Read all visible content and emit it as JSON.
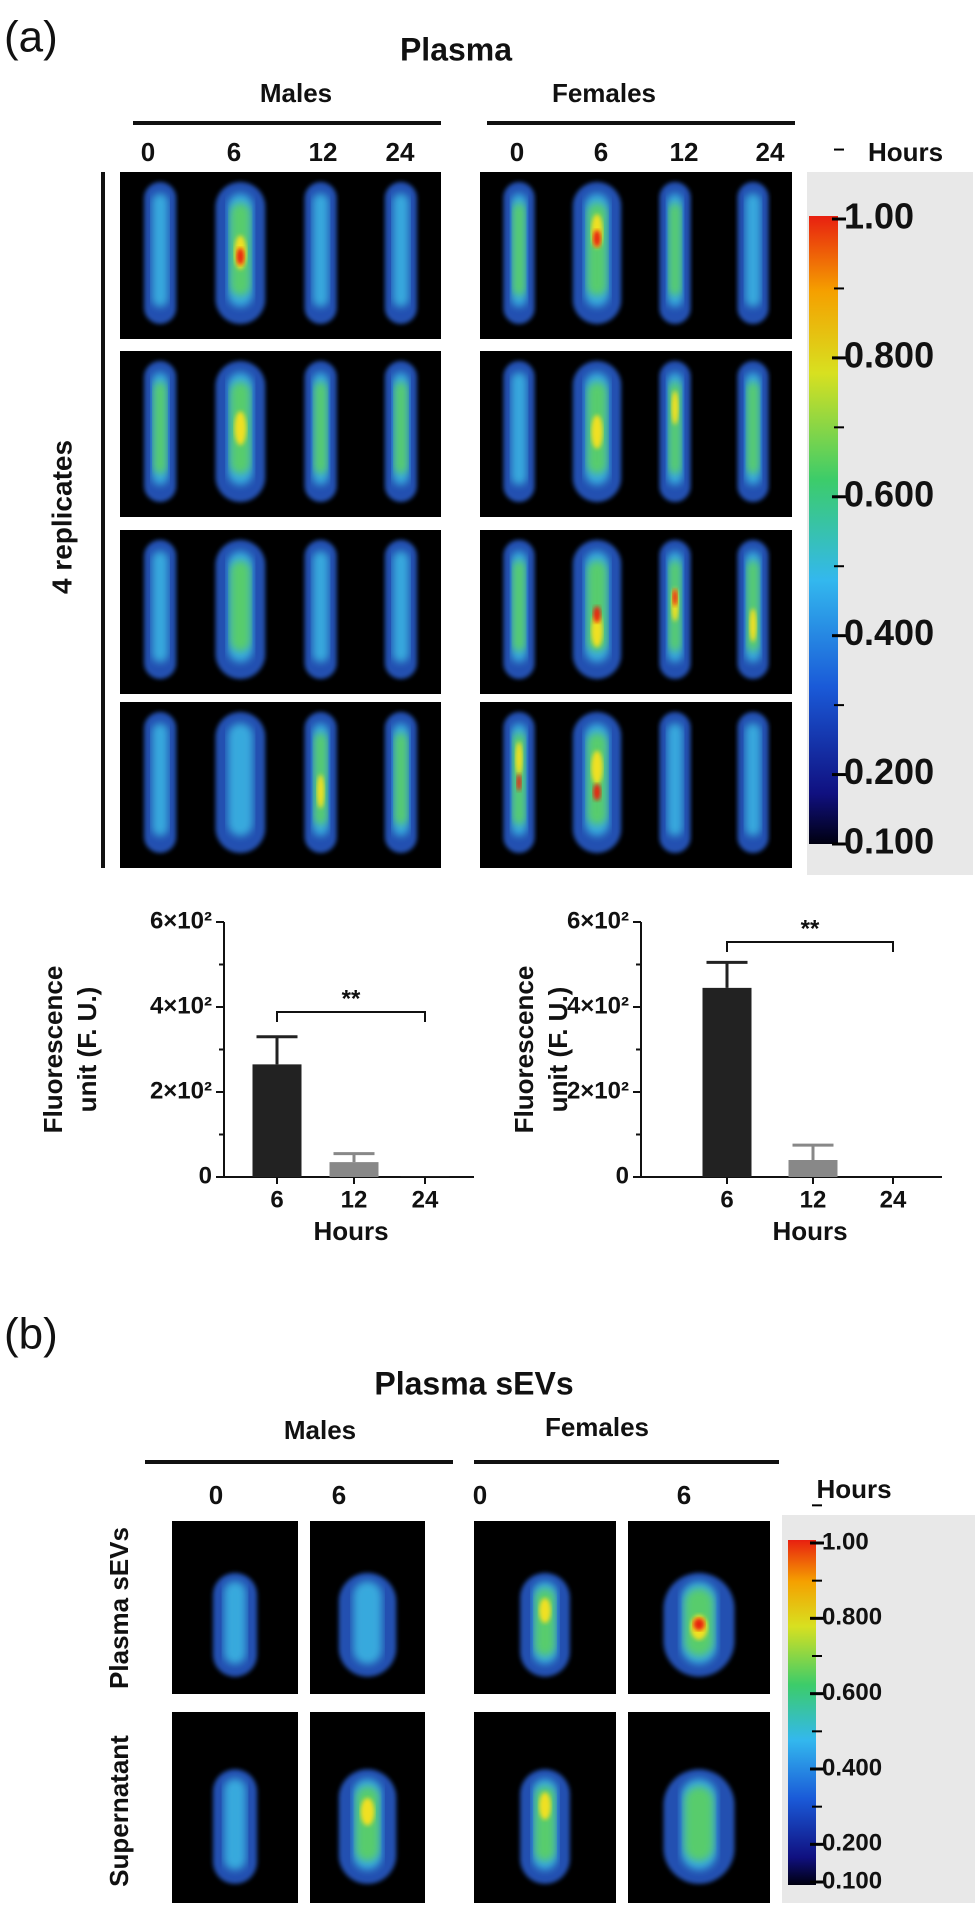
{
  "panel_a": {
    "label": "(a)",
    "title": "Plasma",
    "males": "Males",
    "females": "Females",
    "male_hours": [
      "0",
      "6",
      "12",
      "24"
    ],
    "female_hours": [
      "0",
      "6",
      "12",
      "24"
    ],
    "hours": "Hours",
    "replicates": "4 replicates",
    "colorbar": {
      "ticks": [
        {
          "value": 1.0,
          "label": "1.00"
        },
        {
          "value": 0.8,
          "label": "0.800"
        },
        {
          "value": 0.6,
          "label": "0.600"
        },
        {
          "value": 0.4,
          "label": "0.400"
        },
        {
          "value": 0.2,
          "label": "0.200"
        },
        {
          "value": 0.1,
          "label": "0.100"
        }
      ],
      "lim": [
        0.1,
        1.0
      ]
    }
  },
  "chart_data": [
    {
      "type": "bar",
      "categories": [
        "6",
        "12",
        "24"
      ],
      "values": [
        265,
        35,
        2
      ],
      "errors": [
        65,
        20,
        0
      ],
      "colors": [
        "#222222",
        "#888888",
        "#222222"
      ],
      "xlabel": "Hours",
      "ylabel": [
        "Fluorescence",
        "unit (F. U.)"
      ],
      "ylim": [
        0,
        600
      ],
      "yticks": [
        0,
        {
          "value": 200,
          "label": "2×10²"
        },
        {
          "value": 400,
          "label": "4×10²"
        },
        {
          "value": 600,
          "label": "6×10²"
        }
      ],
      "annotation": "**"
    },
    {
      "type": "bar",
      "categories": [
        "6",
        "12",
        "24"
      ],
      "values": [
        445,
        40,
        0
      ],
      "errors": [
        60,
        35,
        0
      ],
      "colors": [
        "#222222",
        "#888888",
        "#222222"
      ],
      "xlabel": "Hours",
      "ylabel": [
        "Fluorescence",
        "unit (F. U.)"
      ],
      "ylim": [
        0,
        600
      ],
      "yticks": [
        0,
        {
          "value": 200,
          "label": "2×10²"
        },
        {
          "value": 400,
          "label": "4×10²"
        },
        {
          "value": 600,
          "label": "6×10²"
        }
      ],
      "annotation": "**"
    }
  ],
  "panel_b": {
    "label": "(b)",
    "title": "Plasma sEVs",
    "males": "Males",
    "females": "Females",
    "hours_cols": [
      "0",
      "6",
      "0",
      "6"
    ],
    "hours": "Hours",
    "rows": [
      "Plasma sEVs",
      "Supernatant"
    ],
    "colorbar": {
      "ticks": [
        {
          "value": 1.0,
          "label": "1.00"
        },
        {
          "value": 0.8,
          "label": "0.800"
        },
        {
          "value": 0.6,
          "label": "0.600"
        },
        {
          "value": 0.4,
          "label": "0.400"
        },
        {
          "value": 0.2,
          "label": "0.200"
        },
        {
          "value": 0.1,
          "label": "0.100"
        }
      ],
      "lim": [
        0.1,
        1.0
      ]
    }
  }
}
